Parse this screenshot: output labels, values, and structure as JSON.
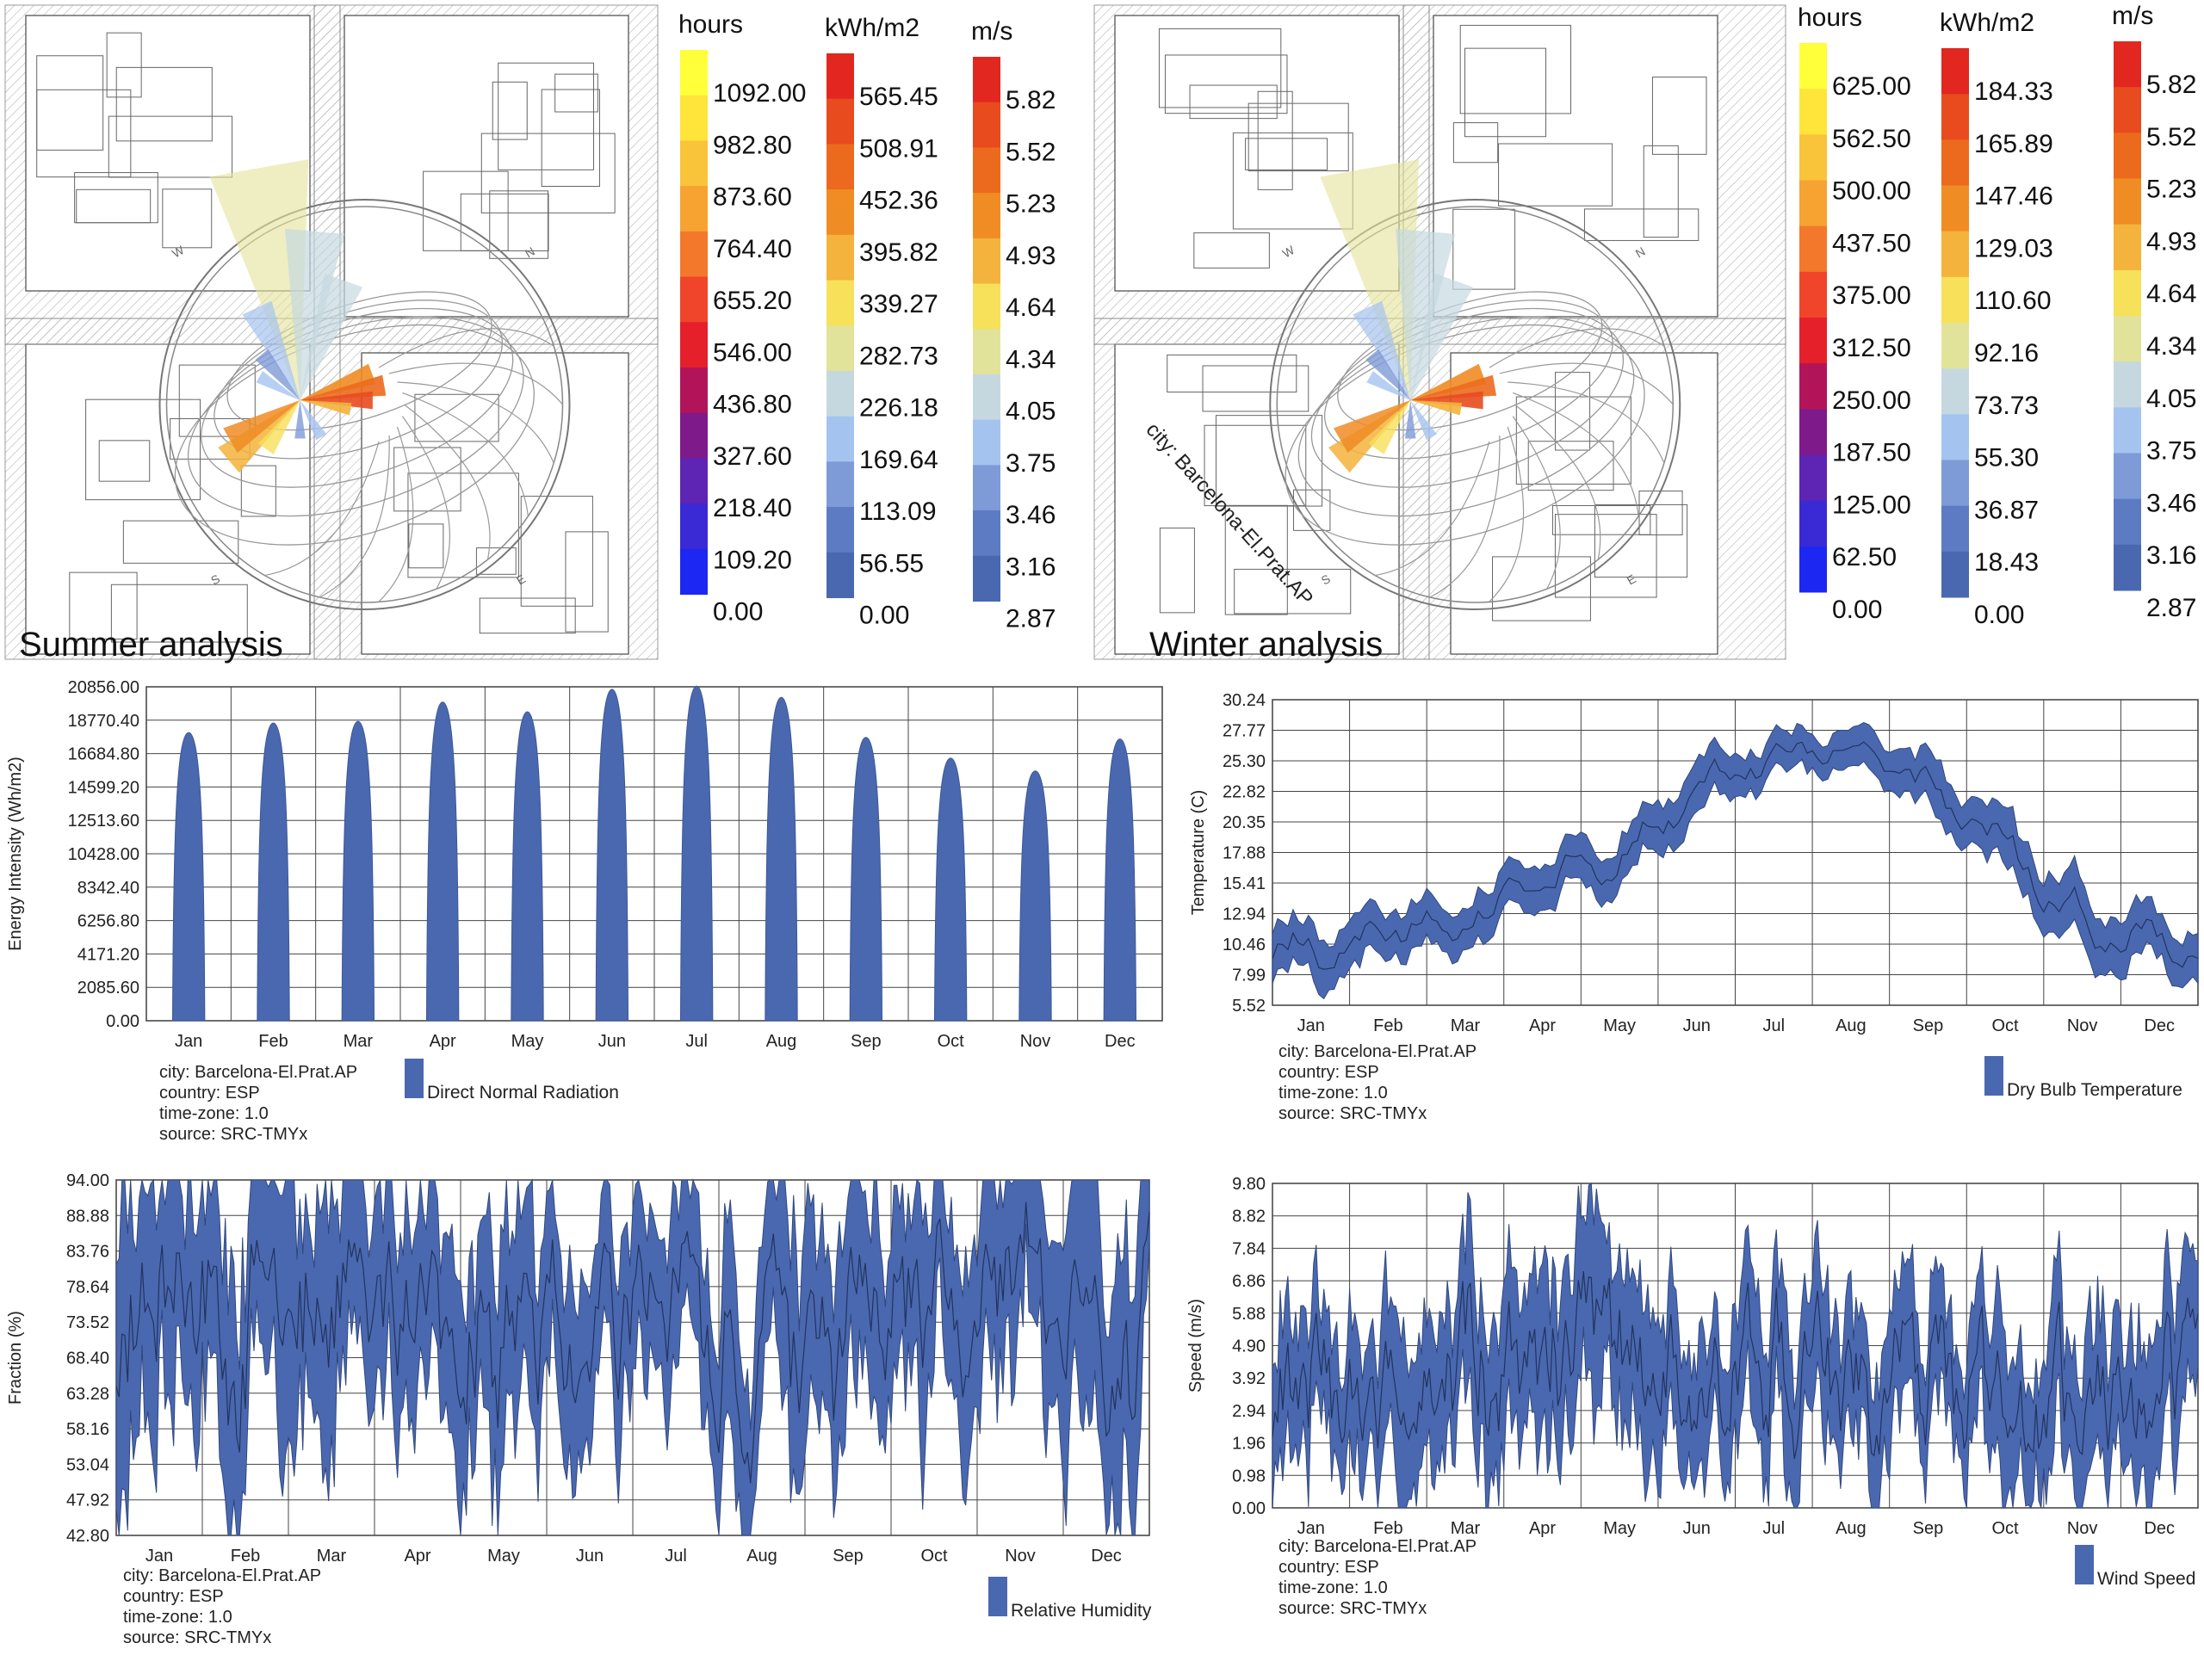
{
  "site_panels": [
    {
      "label": "Summer analysis",
      "city_label": "",
      "legends": [
        {
          "unit": "hours",
          "ticks": [
            "1092.00",
            "982.80",
            "873.60",
            "764.40",
            "655.20",
            "546.00",
            "436.80",
            "327.60",
            "218.40",
            "109.20",
            "0.00"
          ],
          "colors": [
            "#ffff3a",
            "#ffe43a",
            "#f9c33a",
            "#f6a331",
            "#f3782c",
            "#f0452a",
            "#e5202a",
            "#b2145a",
            "#7e1a8a",
            "#5e24b4",
            "#3a2ad6",
            "#1d27f2"
          ]
        },
        {
          "unit": "kWh/m2",
          "ticks": [
            "565.45",
            "508.91",
            "452.36",
            "395.82",
            "339.27",
            "282.73",
            "226.18",
            "169.64",
            "113.09",
            "56.55",
            "0.00"
          ],
          "colors": [
            "#e1271f",
            "#e84b1e",
            "#ec6a1e",
            "#f08c24",
            "#f3b33c",
            "#f7e05a",
            "#e2e39a",
            "#c6d8df",
            "#a5c3ef",
            "#7e9ad7",
            "#5d7bc2",
            "#4a68b0"
          ]
        },
        {
          "unit": "m/s",
          "ticks": [
            "5.82",
            "5.52",
            "5.23",
            "4.93",
            "4.64",
            "4.34",
            "4.05",
            "3.75",
            "3.46",
            "3.16",
            "2.87"
          ],
          "colors": [
            "#e1271f",
            "#e84b1e",
            "#ec6a1e",
            "#f08c24",
            "#f3b33c",
            "#f7e05a",
            "#e2e39a",
            "#c6d8df",
            "#a5c3ef",
            "#7e9ad7",
            "#5d7bc2",
            "#4a68b0"
          ]
        }
      ]
    },
    {
      "label": "Winter analysis",
      "city_label": "city: Barcelona-El.Prat.AP",
      "legends": [
        {
          "unit": "hours",
          "ticks": [
            "625.00",
            "562.50",
            "500.00",
            "437.50",
            "375.00",
            "312.50",
            "250.00",
            "187.50",
            "125.00",
            "62.50",
            "0.00"
          ],
          "colors": [
            "#ffff3a",
            "#ffe43a",
            "#f9c33a",
            "#f6a331",
            "#f3782c",
            "#f0452a",
            "#e5202a",
            "#b2145a",
            "#7e1a8a",
            "#5e24b4",
            "#3a2ad6",
            "#1d27f2"
          ]
        },
        {
          "unit": "kWh/m2",
          "ticks": [
            "184.33",
            "165.89",
            "147.46",
            "129.03",
            "110.60",
            "92.16",
            "73.73",
            "55.30",
            "36.87",
            "18.43",
            "0.00"
          ],
          "colors": [
            "#e1271f",
            "#e84b1e",
            "#ec6a1e",
            "#f08c24",
            "#f3b33c",
            "#f7e05a",
            "#e2e39a",
            "#c6d8df",
            "#a5c3ef",
            "#7e9ad7",
            "#5d7bc2",
            "#4a68b0"
          ]
        },
        {
          "unit": "m/s",
          "ticks": [
            "5.82",
            "5.52",
            "5.23",
            "4.93",
            "4.64",
            "4.34",
            "4.05",
            "3.75",
            "3.46",
            "3.16",
            "2.87"
          ],
          "colors": [
            "#e1271f",
            "#e84b1e",
            "#ec6a1e",
            "#f08c24",
            "#f3b33c",
            "#f7e05a",
            "#e2e39a",
            "#c6d8df",
            "#a5c3ef",
            "#7e9ad7",
            "#5d7bc2",
            "#4a68b0"
          ]
        }
      ]
    }
  ],
  "meta": {
    "city": "city: Barcelona-El.Prat.AP",
    "country": "country: ESP",
    "timezone": "time-zone: 1.0",
    "source": "source: SRC-TMYx"
  },
  "series_color": "#4a68b0",
  "chart_data": [
    {
      "type": "area",
      "ylabel": "Energy Intensity (Wh/m2)",
      "legend": "Direct Normal Radiation",
      "categories": [
        "Jan",
        "Feb",
        "Mar",
        "Apr",
        "May",
        "Jun",
        "Jul",
        "Aug",
        "Sep",
        "Oct",
        "Nov",
        "Dec"
      ],
      "yticks": [
        "0.00",
        "2085.60",
        "4171.20",
        "6256.80",
        "8342.40",
        "10428.00",
        "12513.60",
        "14599.20",
        "16684.80",
        "18770.40",
        "20856.00"
      ],
      "ylim": [
        0,
        20856
      ],
      "monthly_peak": [
        18000,
        18600,
        18700,
        19900,
        19300,
        20700,
        20900,
        20200,
        17700,
        16400,
        15600,
        17600
      ]
    },
    {
      "type": "area",
      "ylabel": "Temperature (C)",
      "legend": "Dry Bulb Temperature",
      "categories": [
        "Jan",
        "Feb",
        "Mar",
        "Apr",
        "May",
        "Jun",
        "Jul",
        "Aug",
        "Sep",
        "Oct",
        "Nov",
        "Dec"
      ],
      "yticks": [
        "5.52",
        "7.99",
        "10.46",
        "12.94",
        "15.41",
        "17.88",
        "20.35",
        "22.82",
        "25.30",
        "27.77",
        "30.24"
      ],
      "ylim": [
        5.52,
        30.24
      ],
      "monthly_mean": [
        9.5,
        11.0,
        12.8,
        14.6,
        17.8,
        22.8,
        25.6,
        26.3,
        22.6,
        18.6,
        12.8,
        10.2
      ],
      "monthly_spread": [
        2.2,
        2.0,
        2.0,
        2.0,
        2.0,
        2.3,
        1.6,
        1.7,
        2.0,
        2.2,
        2.6,
        2.0
      ]
    },
    {
      "type": "area",
      "ylabel": "Fraction (%)",
      "legend": "Relative Humidity",
      "categories": [
        "Jan",
        "Feb",
        "Mar",
        "Apr",
        "May",
        "Jun",
        "Jul",
        "Aug",
        "Sep",
        "Oct",
        "Nov",
        "Dec"
      ],
      "yticks": [
        "42.80",
        "47.92",
        "53.04",
        "58.16",
        "63.28",
        "68.40",
        "73.52",
        "78.64",
        "83.76",
        "88.88",
        "94.00"
      ],
      "ylim": [
        42.8,
        94.0
      ],
      "monthly_mean": [
        78,
        74,
        79,
        72,
        73,
        75,
        74,
        67,
        72,
        80,
        80,
        76
      ],
      "monthly_spread": [
        13,
        15,
        13,
        13,
        12,
        11,
        10,
        11,
        12,
        12,
        12,
        15
      ]
    },
    {
      "type": "area",
      "ylabel": "Speed (m/s)",
      "legend": "Wind Speed",
      "categories": [
        "Jan",
        "Feb",
        "Mar",
        "Apr",
        "May",
        "Jun",
        "Jul",
        "Aug",
        "Sep",
        "Oct",
        "Nov",
        "Dec"
      ],
      "yticks": [
        "0.00",
        "0.98",
        "1.96",
        "2.94",
        "3.92",
        "4.90",
        "5.88",
        "6.86",
        "7.84",
        "8.82",
        "9.80"
      ],
      "ylim": [
        0,
        9.8
      ],
      "monthly_mean": [
        3.6,
        3.3,
        4.4,
        4.5,
        4.3,
        3.9,
        4.2,
        3.8,
        3.8,
        3.5,
        3.0,
        4.2
      ],
      "monthly_spread": [
        1.6,
        1.8,
        2.0,
        2.1,
        2.0,
        1.6,
        2.0,
        1.7,
        1.7,
        1.6,
        1.9,
        1.9
      ]
    }
  ]
}
